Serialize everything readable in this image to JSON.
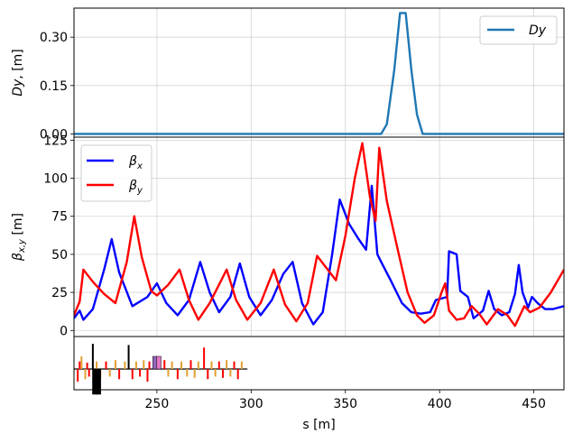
{
  "chart_data": [
    {
      "panel": "dispersion",
      "type": "line",
      "xlim": [
        206,
        466
      ],
      "ylim": [
        -0.01,
        0.39
      ],
      "ylabel": "Dy, [m]",
      "yticks": [
        "0.00",
        "0.15",
        "0.30"
      ],
      "ytick_values": [
        0.0,
        0.15,
        0.3
      ],
      "xgrid": [
        250,
        300,
        350,
        400,
        450
      ],
      "grid": true,
      "legend_position": "upper right",
      "series": [
        {
          "name": "Dy",
          "color": "#1f77b4",
          "points": [
            [
              206,
              0.0
            ],
            [
              369,
              0.0
            ],
            [
              372,
              0.03
            ],
            [
              376,
              0.2
            ],
            [
              379,
              0.375
            ],
            [
              382,
              0.375
            ],
            [
              385,
              0.2
            ],
            [
              388,
              0.06
            ],
            [
              391,
              0.0
            ],
            [
              466,
              0.0
            ]
          ]
        }
      ]
    },
    {
      "panel": "beta",
      "type": "line",
      "xlim": [
        206,
        466
      ],
      "ylim": [
        -4,
        127
      ],
      "ylabel": "βx,y [m]",
      "yticks": [
        "0",
        "25",
        "50",
        "75",
        "100",
        "125"
      ],
      "ytick_values": [
        0,
        25,
        50,
        75,
        100,
        125
      ],
      "xgrid": [
        250,
        300,
        350,
        400,
        450
      ],
      "grid": true,
      "legend_position": "upper left",
      "series": [
        {
          "name": "βx",
          "color": "#0000ff",
          "points": [
            [
              206,
              8
            ],
            [
              209,
              13
            ],
            [
              211,
              7
            ],
            [
              216,
              14
            ],
            [
              222,
              40
            ],
            [
              226,
              60
            ],
            [
              230,
              38
            ],
            [
              237,
              16
            ],
            [
              245,
              22
            ],
            [
              250,
              31
            ],
            [
              255,
              18
            ],
            [
              261,
              10
            ],
            [
              267,
              20
            ],
            [
              273,
              45
            ],
            [
              278,
              25
            ],
            [
              283,
              12
            ],
            [
              289,
              22
            ],
            [
              294,
              44
            ],
            [
              299,
              22
            ],
            [
              305,
              10
            ],
            [
              311,
              20
            ],
            [
              317,
              37
            ],
            [
              322,
              45
            ],
            [
              327,
              18
            ],
            [
              333,
              4
            ],
            [
              338,
              12
            ],
            [
              343,
              50
            ],
            [
              347,
              86
            ],
            [
              352,
              70
            ],
            [
              357,
              60
            ],
            [
              361,
              53
            ],
            [
              364,
              95
            ],
            [
              367,
              50
            ],
            [
              369,
              45
            ],
            [
              374,
              33
            ],
            [
              380,
              18
            ],
            [
              385,
              12
            ],
            [
              390,
              11
            ],
            [
              395,
              12
            ],
            [
              398,
              20
            ],
            [
              404,
              22
            ],
            [
              405,
              52
            ],
            [
              409,
              50
            ],
            [
              411,
              26
            ],
            [
              415,
              22
            ],
            [
              418,
              8
            ],
            [
              423,
              13
            ],
            [
              426,
              26
            ],
            [
              429,
              14
            ],
            [
              433,
              10
            ],
            [
              437,
              12
            ],
            [
              440,
              24
            ],
            [
              442,
              43
            ],
            [
              444,
              25
            ],
            [
              447,
              15
            ],
            [
              449,
              22
            ],
            [
              452,
              18
            ],
            [
              456,
              14
            ],
            [
              460,
              14
            ],
            [
              466,
              16
            ]
          ]
        },
        {
          "name": "βy",
          "color": "#ff0000",
          "points": [
            [
              206,
              10
            ],
            [
              209,
              19
            ],
            [
              211,
              40
            ],
            [
              216,
              32
            ],
            [
              222,
              24
            ],
            [
              228,
              18
            ],
            [
              234,
              45
            ],
            [
              238,
              75
            ],
            [
              242,
              48
            ],
            [
              247,
              26
            ],
            [
              250,
              23
            ],
            [
              256,
              30
            ],
            [
              262,
              40
            ],
            [
              267,
              20
            ],
            [
              272,
              7
            ],
            [
              278,
              18
            ],
            [
              287,
              40
            ],
            [
              292,
              20
            ],
            [
              298,
              7
            ],
            [
              305,
              18
            ],
            [
              312,
              40
            ],
            [
              318,
              17
            ],
            [
              324,
              6
            ],
            [
              330,
              18
            ],
            [
              335,
              49
            ],
            [
              345,
              33
            ],
            [
              350,
              62
            ],
            [
              355,
              100
            ],
            [
              359,
              123
            ],
            [
              363,
              88
            ],
            [
              366,
              72
            ],
            [
              368,
              120
            ],
            [
              372,
              85
            ],
            [
              378,
              52
            ],
            [
              383,
              25
            ],
            [
              388,
              10
            ],
            [
              392,
              5
            ],
            [
              397,
              10
            ],
            [
              401,
              25
            ],
            [
              403,
              31
            ],
            [
              405,
              13
            ],
            [
              409,
              7
            ],
            [
              413,
              8
            ],
            [
              417,
              16
            ],
            [
              421,
              11
            ],
            [
              425,
              4
            ],
            [
              431,
              14
            ],
            [
              436,
              10
            ],
            [
              440,
              3
            ],
            [
              445,
              16
            ],
            [
              448,
              12
            ],
            [
              453,
              15
            ],
            [
              459,
              25
            ],
            [
              466,
              40
            ]
          ]
        }
      ]
    },
    {
      "panel": "lattice",
      "type": "other",
      "xlim": [
        206,
        466
      ],
      "xlabel": "s [m]",
      "xticks": [
        "250",
        "300",
        "350",
        "400",
        "450"
      ],
      "xtick_values": [
        250,
        300,
        350,
        400,
        450
      ],
      "elements": [
        {
          "s": 208,
          "h": -0.5,
          "c": "#ff0000"
        },
        {
          "s": 209,
          "h": 0.3,
          "c": "#ff0000"
        },
        {
          "s": 210,
          "h": 0.5,
          "c": "#e0a030"
        },
        {
          "s": 212,
          "h": -0.4,
          "c": "#e0a030"
        },
        {
          "s": 213,
          "h": 0.25,
          "c": "#ff0000"
        },
        {
          "s": 214,
          "h": -0.3,
          "c": "#ff0000"
        },
        {
          "s": 216,
          "h": 1.0,
          "c": "#000000"
        },
        {
          "s": 218,
          "h": 0.3,
          "c": "#e0a030"
        },
        {
          "s": 220,
          "h": -0.35,
          "c": "#e0a030"
        },
        {
          "s": 223,
          "h": 0.3,
          "c": "#ff0000"
        },
        {
          "s": 225,
          "h": -0.3,
          "c": "#e0a030"
        },
        {
          "s": 228,
          "h": 0.35,
          "c": "#e0a030"
        },
        {
          "s": 230,
          "h": -0.4,
          "c": "#ff0000"
        },
        {
          "s": 233,
          "h": 0.3,
          "c": "#e0a030"
        },
        {
          "s": 235,
          "h": 0.95,
          "c": "#000000"
        },
        {
          "s": 237,
          "h": -0.4,
          "c": "#ff0000"
        },
        {
          "s": 239,
          "h": 0.3,
          "c": "#e0a030"
        },
        {
          "s": 241,
          "h": -0.3,
          "c": "#ff0000"
        },
        {
          "s": 243,
          "h": 0.35,
          "c": "#e0a030"
        },
        {
          "s": 245,
          "h": -0.5,
          "c": "#ff0000"
        },
        {
          "s": 246,
          "h": 0.3,
          "c": "#ff0000"
        },
        {
          "s": 254,
          "h": 0.35,
          "c": "#ff0000"
        },
        {
          "s": 256,
          "h": -0.3,
          "c": "#e0a030"
        },
        {
          "s": 258,
          "h": 0.3,
          "c": "#e0a030"
        },
        {
          "s": 261,
          "h": -0.4,
          "c": "#ff0000"
        },
        {
          "s": 263,
          "h": 0.3,
          "c": "#e0a030"
        },
        {
          "s": 266,
          "h": -0.3,
          "c": "#e0a030"
        },
        {
          "s": 268,
          "h": 0.35,
          "c": "#ff0000"
        },
        {
          "s": 270,
          "h": -0.35,
          "c": "#e0a030"
        },
        {
          "s": 272,
          "h": 0.3,
          "c": "#e0a030"
        },
        {
          "s": 275,
          "h": 0.85,
          "c": "#ff0000"
        },
        {
          "s": 277,
          "h": -0.4,
          "c": "#ff0000"
        },
        {
          "s": 279,
          "h": 0.3,
          "c": "#e0a030"
        },
        {
          "s": 281,
          "h": -0.3,
          "c": "#e0a030"
        },
        {
          "s": 283,
          "h": 0.3,
          "c": "#ff0000"
        },
        {
          "s": 285,
          "h": -0.35,
          "c": "#ff0000"
        },
        {
          "s": 287,
          "h": 0.35,
          "c": "#e0a030"
        },
        {
          "s": 289,
          "h": -0.3,
          "c": "#e0a030"
        },
        {
          "s": 291,
          "h": 0.3,
          "c": "#ff0000"
        },
        {
          "s": 293,
          "h": -0.4,
          "c": "#ff0000"
        },
        {
          "s": 295,
          "h": 0.3,
          "c": "#e0a030"
        }
      ],
      "wide_elements": [
        {
          "s": 217,
          "depth": -1.0,
          "c": "#000000"
        },
        {
          "s": 219,
          "depth": -1.0,
          "c": "#000000"
        },
        {
          "s": 249,
          "depth": 0.5,
          "c": "#9467bd"
        },
        {
          "s": 251,
          "depth": 0.5,
          "c": "#e377c2"
        }
      ]
    }
  ]
}
